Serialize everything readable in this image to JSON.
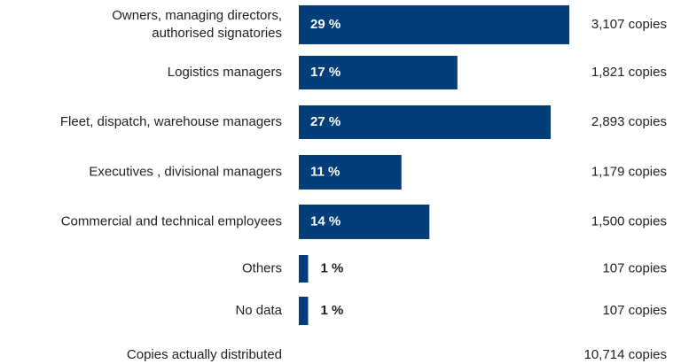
{
  "chart_data": {
    "type": "bar",
    "orientation": "horizontal",
    "color": "#033d7a",
    "categories": [
      "Owners, managing directors,\nauthorised signatories",
      "Logistics managers",
      "Fleet, dispatch, warehouse managers",
      "Executives , divisional managers",
      "Commercial and technical employees",
      "Others",
      "No data"
    ],
    "values": [
      29,
      17,
      27,
      11,
      14,
      1,
      1
    ],
    "value_labels": [
      "29 %",
      "17 %",
      "27 %",
      "11 %",
      "14 %",
      "1 %",
      "1 %"
    ],
    "copies_labels": [
      "3,107 copies",
      "1,821 copies",
      "2,893 copies",
      "1,179 copies",
      "1,500 copies",
      "107 copies",
      "107 copies"
    ],
    "total": {
      "label": "Copies actually distributed",
      "copies_label": "10,714 copies"
    }
  }
}
